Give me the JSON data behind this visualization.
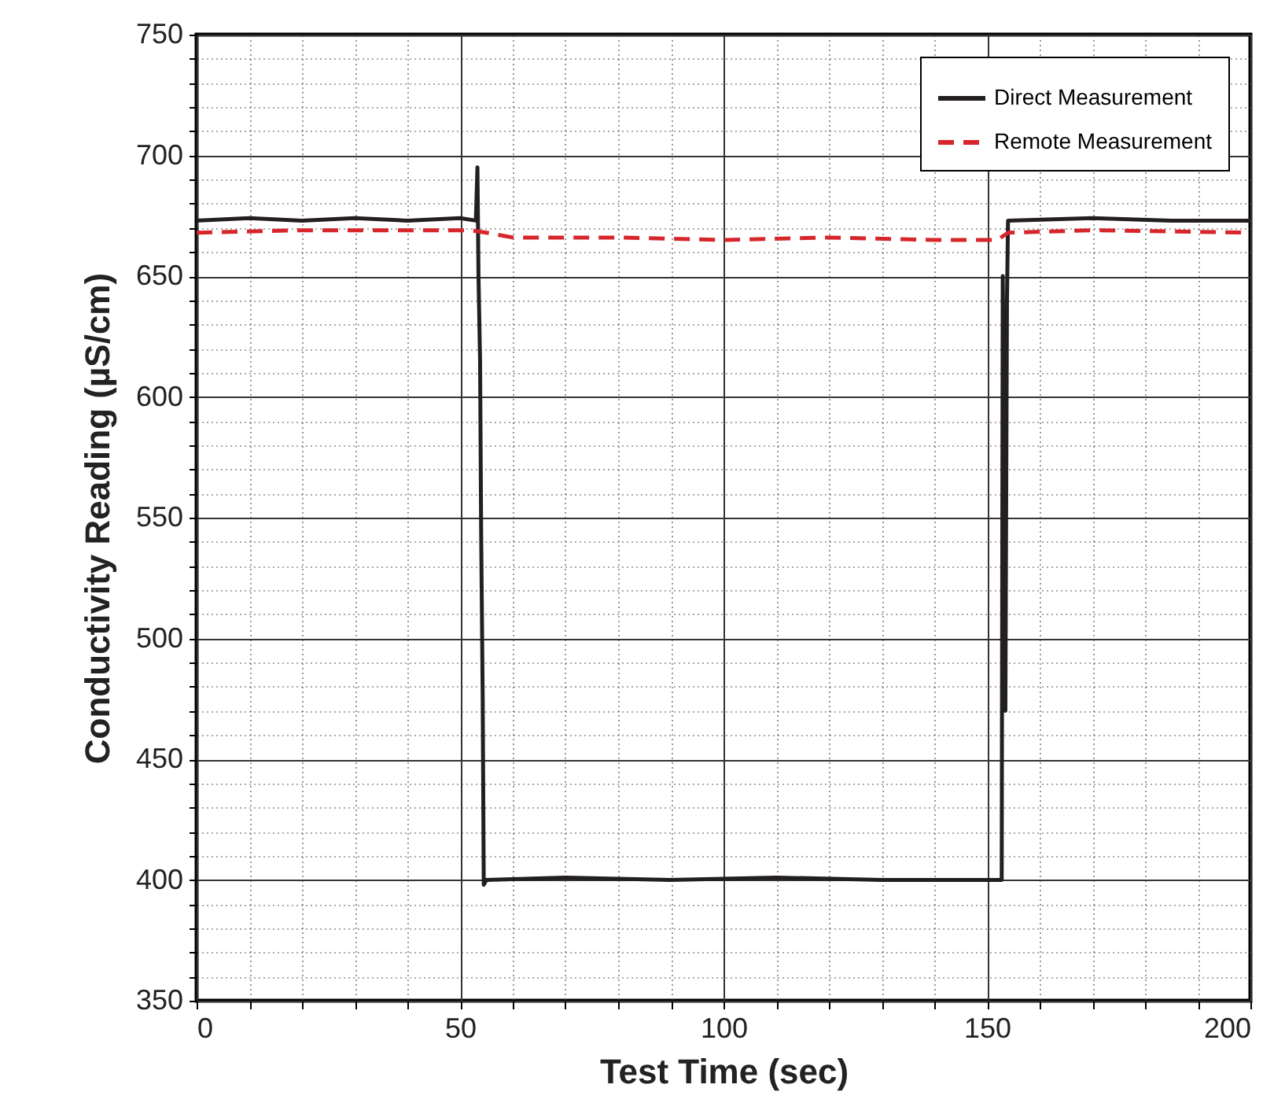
{
  "chart_data": {
    "type": "line",
    "xlabel": "Test Time (sec)",
    "ylabel": "Conductivity Reading (µS/cm)",
    "xlim": [
      0,
      200
    ],
    "ylim": [
      350,
      750
    ],
    "xticks": [
      0,
      {
        "value": 10,
        "label": null
      },
      {
        "value": 20,
        "label": null
      },
      {
        "value": 30,
        "label": null
      },
      {
        "value": 40,
        "label": null
      },
      50,
      {
        "value": 60,
        "label": null
      },
      {
        "value": 70,
        "label": null
      },
      {
        "value": 80,
        "label": null
      },
      {
        "value": 90,
        "label": null
      },
      100,
      {
        "value": 110,
        "label": null
      },
      {
        "value": 120,
        "label": null
      },
      {
        "value": 130,
        "label": null
      },
      {
        "value": 140,
        "label": null
      },
      150,
      {
        "value": 160,
        "label": null
      },
      {
        "value": 170,
        "label": null
      },
      {
        "value": 180,
        "label": null
      },
      {
        "value": 190,
        "label": null
      },
      200
    ],
    "yticks": [
      350,
      {
        "value": 360,
        "label": null
      },
      {
        "value": 370,
        "label": null
      },
      {
        "value": 380,
        "label": null
      },
      {
        "value": 390,
        "label": null
      },
      400,
      {
        "value": 410,
        "label": null
      },
      {
        "value": 420,
        "label": null
      },
      {
        "value": 430,
        "label": null
      },
      {
        "value": 440,
        "label": null
      },
      450,
      {
        "value": 460,
        "label": null
      },
      {
        "value": 470,
        "label": null
      },
      {
        "value": 480,
        "label": null
      },
      {
        "value": 490,
        "label": null
      },
      500,
      {
        "value": 510,
        "label": null
      },
      {
        "value": 520,
        "label": null
      },
      {
        "value": 530,
        "label": null
      },
      {
        "value": 540,
        "label": null
      },
      550,
      {
        "value": 560,
        "label": null
      },
      {
        "value": 570,
        "label": null
      },
      {
        "value": 580,
        "label": null
      },
      {
        "value": 590,
        "label": null
      },
      600,
      {
        "value": 610,
        "label": null
      },
      {
        "value": 620,
        "label": null
      },
      {
        "value": 630,
        "label": null
      },
      {
        "value": 640,
        "label": null
      },
      650,
      {
        "value": 660,
        "label": null
      },
      {
        "value": 670,
        "label": null
      },
      {
        "value": 680,
        "label": null
      },
      {
        "value": 690,
        "label": null
      },
      700,
      {
        "value": 710,
        "label": null
      },
      {
        "value": 720,
        "label": null
      },
      {
        "value": 730,
        "label": null
      },
      {
        "value": 740,
        "label": null
      },
      750
    ],
    "grid": true,
    "legend": "top right",
    "marker": "none",
    "series": [
      {
        "name": "Direct Measurement",
        "color": "#231f20",
        "line_style": "solid",
        "x": [
          0,
          10,
          20,
          30,
          40,
          50,
          53,
          53.3,
          53.5,
          53.8,
          54,
          54.3,
          54.5,
          55,
          70,
          90,
          110,
          130,
          150,
          152.8,
          153,
          153.3,
          153.5,
          153.8,
          154,
          170,
          185,
          200
        ],
        "values": [
          673,
          674,
          673,
          674,
          673,
          674,
          673,
          695,
          650,
          615,
          545,
          475,
          398,
          400,
          401,
          400,
          401,
          400,
          400,
          400,
          650,
          560,
          470,
          640,
          673,
          674,
          673,
          673
        ]
      },
      {
        "name": "Remote Measurement",
        "color": "#d7262b",
        "line_style": "dashed",
        "x": [
          0,
          20,
          40,
          52,
          55,
          60,
          80,
          100,
          120,
          140,
          152,
          154,
          170,
          200
        ],
        "values": [
          668,
          669,
          669,
          669,
          668,
          666,
          666,
          665,
          666,
          665,
          665,
          668,
          669,
          668
        ]
      }
    ]
  }
}
